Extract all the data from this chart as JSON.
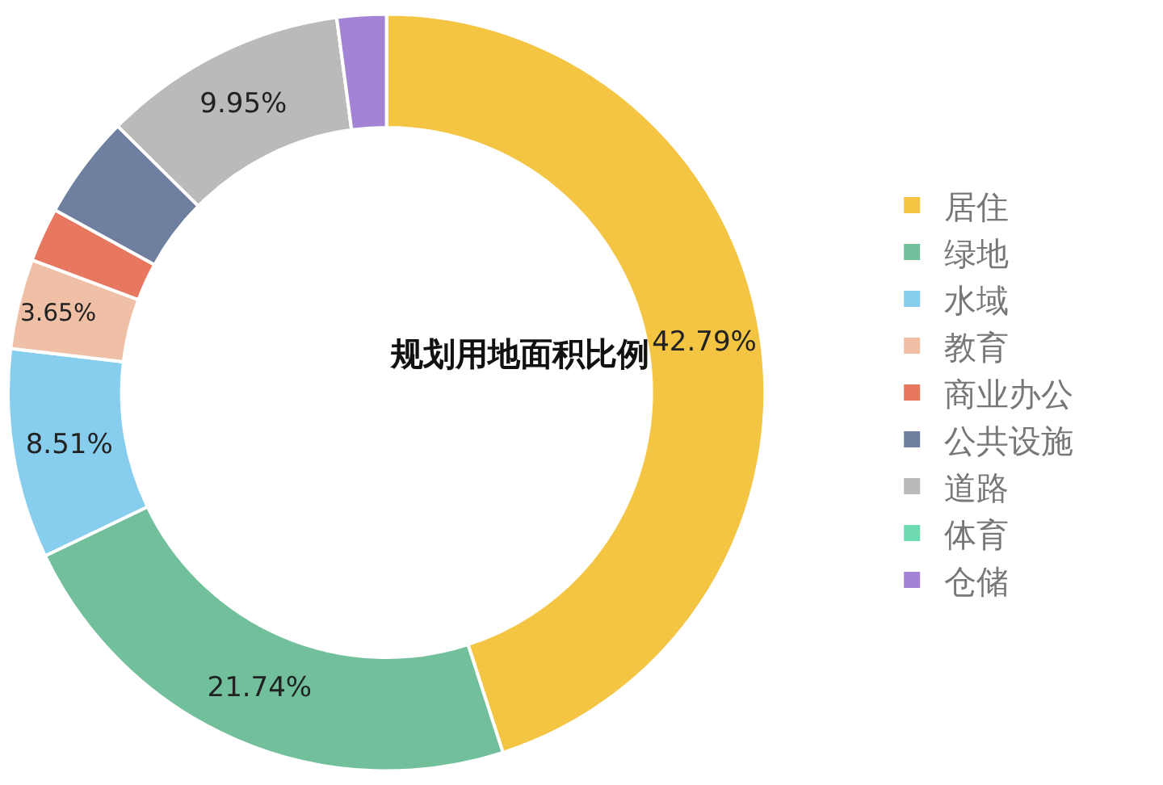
{
  "chart_data": {
    "type": "donut",
    "title": "规划用地面积比例",
    "categories": [
      "居住",
      "绿地",
      "水域",
      "教育",
      "商业办公",
      "公共设施",
      "道路",
      "体育",
      "仓储"
    ],
    "values": [
      42.79,
      21.74,
      8.51,
      3.65,
      2.2,
      4.2,
      9.95,
      0,
      2.0
    ],
    "value_labels": [
      "42.79%",
      "21.74%",
      "8.51%",
      "3.65%",
      null,
      null,
      "9.95%",
      null,
      null
    ],
    "colors": [
      "#f4c542",
      "#72bf9c",
      "#87cdee",
      "#f0c0a6",
      "#e8775f",
      "#6f7fa0",
      "#bababa",
      "#6fd9b0",
      "#a384d4"
    ],
    "legend": "right"
  }
}
